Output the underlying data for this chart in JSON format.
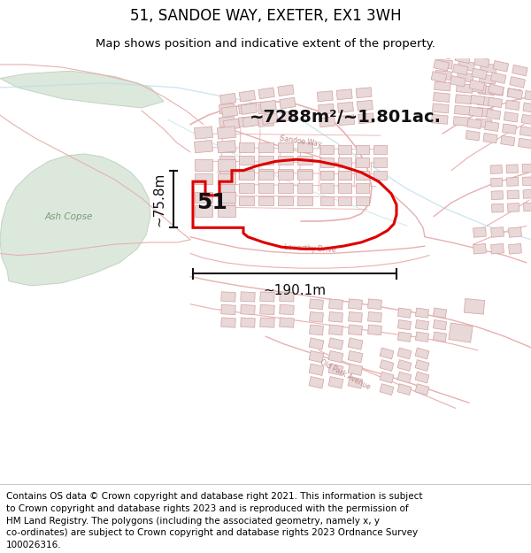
{
  "title": "51, SANDOE WAY, EXETER, EX1 3WH",
  "subtitle": "Map shows position and indicative extent of the property.",
  "footer_lines": [
    "Contains OS data © Crown copyright and database right 2021. This information is subject",
    "to Crown copyright and database rights 2023 and is reproduced with the permission of",
    "HM Land Registry. The polygons (including the associated geometry, namely x, y",
    "co-ordinates) are subject to Crown copyright and database rights 2023 Ordnance Survey",
    "100026316."
  ],
  "area_label": "~7288m²/~1.801ac.",
  "width_label": "~190.1m",
  "height_label": "~75.8m",
  "plot_number": "51",
  "map_bg": "#ffffff",
  "green_color": "#dce8dc",
  "green_edge": "#c0d4c0",
  "road_color": "#e8b0b0",
  "road_lw": 0.8,
  "building_fill": "#e8d8d8",
  "building_edge": "#d4a0a0",
  "highlight_color": "#dd0000",
  "water_color": "#aadde8",
  "annotation_color": "#1a1a1a",
  "title_fontsize": 12,
  "subtitle_fontsize": 9.5,
  "footer_fontsize": 7.5
}
